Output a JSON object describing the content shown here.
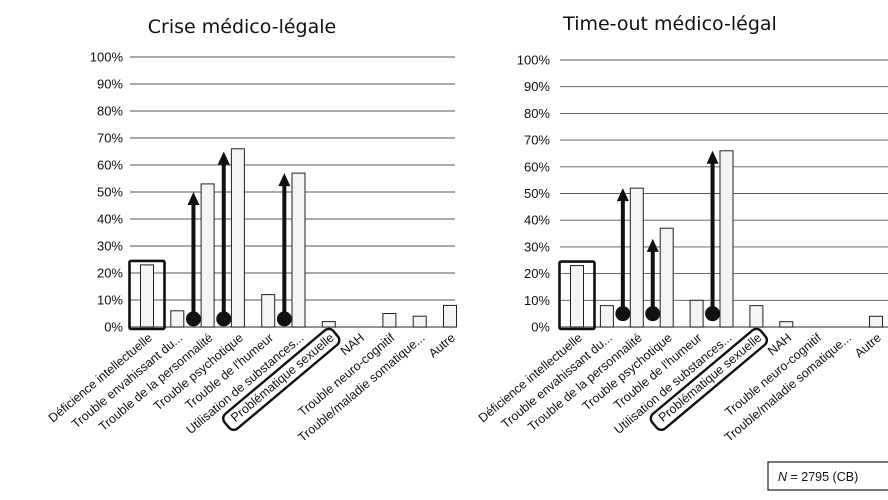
{
  "chart_data": [
    {
      "type": "bar",
      "title": "Crise médico-légale",
      "ylim": [
        0,
        100
      ],
      "y_ticks": [
        "0%",
        "10%",
        "20%",
        "30%",
        "40%",
        "50%",
        "60%",
        "70%",
        "80%",
        "90%",
        "100%"
      ],
      "grid": true,
      "categories": [
        "Déficience intellectuelle",
        "Trouble envahissant du...",
        "Trouble de la personnalité",
        "Trouble psychotique",
        "Trouble de l'humeur",
        "Utilisation de substances...",
        "Problématique sexuelle",
        "NAH",
        "Trouble neuro-cognitif",
        "Trouble/maladie somatique...",
        "Autre"
      ],
      "values": [
        23,
        6,
        53,
        66,
        12,
        57,
        2,
        0,
        5,
        4,
        8
      ],
      "annotations": [
        {
          "type": "box",
          "category": "Déficience intellectuelle"
        },
        {
          "type": "box",
          "category": "Problématique sexuelle"
        },
        {
          "type": "arrow",
          "category": "Trouble envahissant du...",
          "from": 3,
          "to": 50
        },
        {
          "type": "arrow",
          "category": "Trouble de la personnalité",
          "from": 3,
          "to": 65
        },
        {
          "type": "arrow",
          "category": "Trouble de l'humeur",
          "from": 3,
          "to": 57
        }
      ]
    },
    {
      "type": "bar",
      "title": "Time-out médico-légal",
      "ylim": [
        0,
        100
      ],
      "y_ticks": [
        "0%",
        "10%",
        "20%",
        "30%",
        "40%",
        "50%",
        "60%",
        "70%",
        "80%",
        "90%",
        "100%"
      ],
      "grid": true,
      "categories": [
        "Déficience intellectuelle",
        "Trouble envahissant du...",
        "Trouble de la personnalité",
        "Trouble psychotique",
        "Trouble de l'humeur",
        "Utilisation de substances...",
        "Problématique sexuelle",
        "NAH",
        "Trouble neuro-cognitif",
        "Trouble/maladie somatique...",
        "Autre"
      ],
      "values": [
        23,
        8,
        52,
        37,
        10,
        66,
        8,
        2,
        0,
        0,
        4
      ],
      "annotations": [
        {
          "type": "box",
          "category": "Déficience intellectuelle"
        },
        {
          "type": "box",
          "category": "Problématique sexuelle"
        },
        {
          "type": "arrow",
          "category": "Trouble envahissant du...",
          "from": 5,
          "to": 52
        },
        {
          "type": "arrow",
          "category": "Trouble de la personnalité",
          "from": 5,
          "to": 33
        },
        {
          "type": "arrow",
          "category": "Trouble de l'humeur",
          "from": 5,
          "to": 66
        }
      ]
    }
  ],
  "footnote": {
    "prefix": "N",
    "text": " = 2795 (CB)"
  }
}
